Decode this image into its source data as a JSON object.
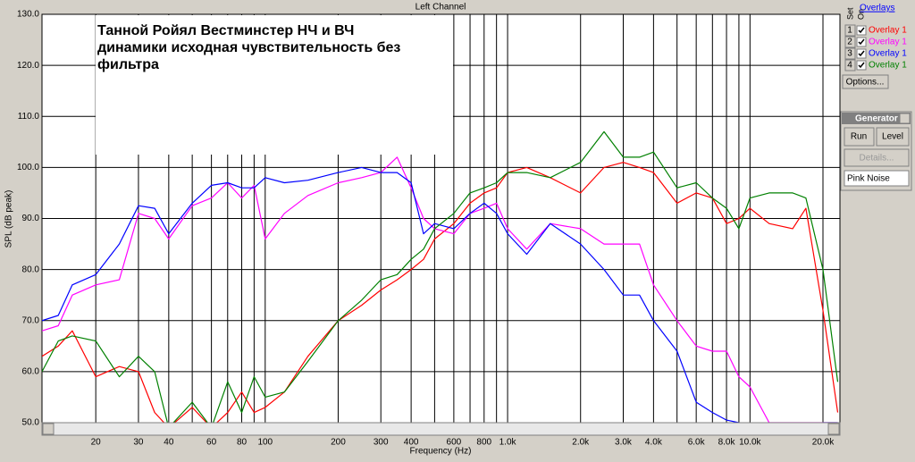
{
  "chart_data": {
    "type": "line",
    "title": "Left Channel",
    "xlabel": "Frequency (Hz)",
    "ylabel": "SPL (dB peak)",
    "x_scale": "log",
    "grid": true,
    "annotation": [
      "Танной  Ройял  Вестминстер НЧ и ВЧ",
      "динамики   исходная   чувствительность   без",
      "фильтра"
    ],
    "xlim": [
      12,
      23500
    ],
    "ylim": [
      50,
      130
    ],
    "yticks": [
      {
        "value": 50,
        "label": "50.0"
      },
      {
        "value": 60,
        "label": "60.0"
      },
      {
        "value": 70,
        "label": "70.0"
      },
      {
        "value": 80,
        "label": "80.0"
      },
      {
        "value": 90,
        "label": "90.0"
      },
      {
        "value": 100,
        "label": "100.0"
      },
      {
        "value": 110,
        "label": "110.0"
      },
      {
        "value": 120,
        "label": "120.0"
      },
      {
        "value": 130,
        "label": "130.0"
      }
    ],
    "xticks": [
      20,
      30,
      40,
      60,
      80,
      100,
      200,
      300,
      400,
      600,
      800,
      {
        "value": 1000,
        "label": "1.0k"
      },
      {
        "value": 2000,
        "label": "2.0k"
      },
      {
        "value": 3000,
        "label": "3.0k"
      },
      {
        "value": 4000,
        "label": "4.0k"
      },
      {
        "value": 6000,
        "label": "6.0k"
      },
      {
        "value": 8000,
        "label": "8.0k"
      },
      {
        "value": 10000,
        "label": "10.0k"
      },
      {
        "value": 20000,
        "label": "20.0k"
      }
    ],
    "xgrid_minor": [
      50,
      70,
      90,
      500,
      700,
      900,
      5000,
      7000,
      9000
    ],
    "x": [
      12,
      14,
      16,
      20,
      25,
      30,
      35,
      40,
      50,
      60,
      70,
      80,
      90,
      100,
      120,
      150,
      200,
      250,
      300,
      350,
      400,
      450,
      500,
      600,
      700,
      800,
      900,
      1000,
      1200,
      1500,
      2000,
      2500,
      3000,
      3500,
      4000,
      5000,
      6000,
      7000,
      8000,
      9000,
      10000,
      12000,
      15000,
      17000,
      20000,
      23000
    ],
    "series": [
      {
        "name": "Overlay 1",
        "color": "#ff0000",
        "values": [
          63,
          65,
          68,
          59,
          61,
          60,
          52,
          49,
          53,
          49,
          52,
          56,
          52,
          53,
          56,
          63,
          70,
          73,
          76,
          78,
          80,
          82,
          86,
          89,
          93,
          95,
          96,
          99,
          100,
          98,
          95,
          100,
          101,
          100,
          99,
          93,
          95,
          94,
          89,
          90,
          92,
          89,
          88,
          92,
          72,
          52
        ]
      },
      {
        "name": "Overlay 1",
        "color": "#ff00ff",
        "values": [
          68,
          69,
          75,
          77,
          78,
          91,
          90,
          86,
          92.5,
          94,
          97,
          94,
          96.5,
          86,
          91,
          94.5,
          97,
          98,
          99,
          102,
          96,
          90,
          88,
          87,
          91,
          92,
          93,
          88,
          84,
          89,
          88,
          85,
          85,
          85,
          77,
          70,
          65,
          64,
          64,
          59,
          57,
          50,
          50,
          50,
          50,
          50
        ]
      },
      {
        "name": "Overlay 1",
        "color": "#0000ff",
        "values": [
          70,
          71,
          77,
          79,
          85,
          92.5,
          92,
          87,
          93,
          96.5,
          97,
          96,
          96,
          98,
          97,
          97.5,
          99,
          100,
          99,
          99,
          97,
          87,
          89,
          88,
          91,
          93,
          91,
          87,
          83,
          89,
          85,
          80,
          75,
          75,
          70,
          64,
          54,
          52,
          50.5,
          50,
          49,
          49,
          49,
          49,
          50,
          50
        ]
      },
      {
        "name": "Overlay 1",
        "color": "#008000",
        "values": [
          60,
          66,
          67,
          66,
          59,
          63,
          60,
          49,
          54,
          49,
          58,
          52,
          59,
          55,
          56,
          62,
          70,
          74,
          78,
          79,
          82,
          84,
          88,
          91,
          95,
          96,
          97,
          99,
          99,
          98,
          101,
          107,
          102,
          102,
          103,
          96,
          97,
          94,
          92,
          88,
          94,
          95,
          95,
          94,
          80,
          58
        ]
      }
    ]
  },
  "overlays_panel": {
    "title": "Overlays",
    "col_set": "Set",
    "col_on": "On",
    "rows": [
      "1",
      "2",
      "3",
      "4"
    ],
    "options_button": "Options..."
  },
  "generator_panel": {
    "title": "Generator",
    "run": "Run",
    "level": "Level",
    "details": "Details...",
    "signal": "Pink Noise"
  }
}
